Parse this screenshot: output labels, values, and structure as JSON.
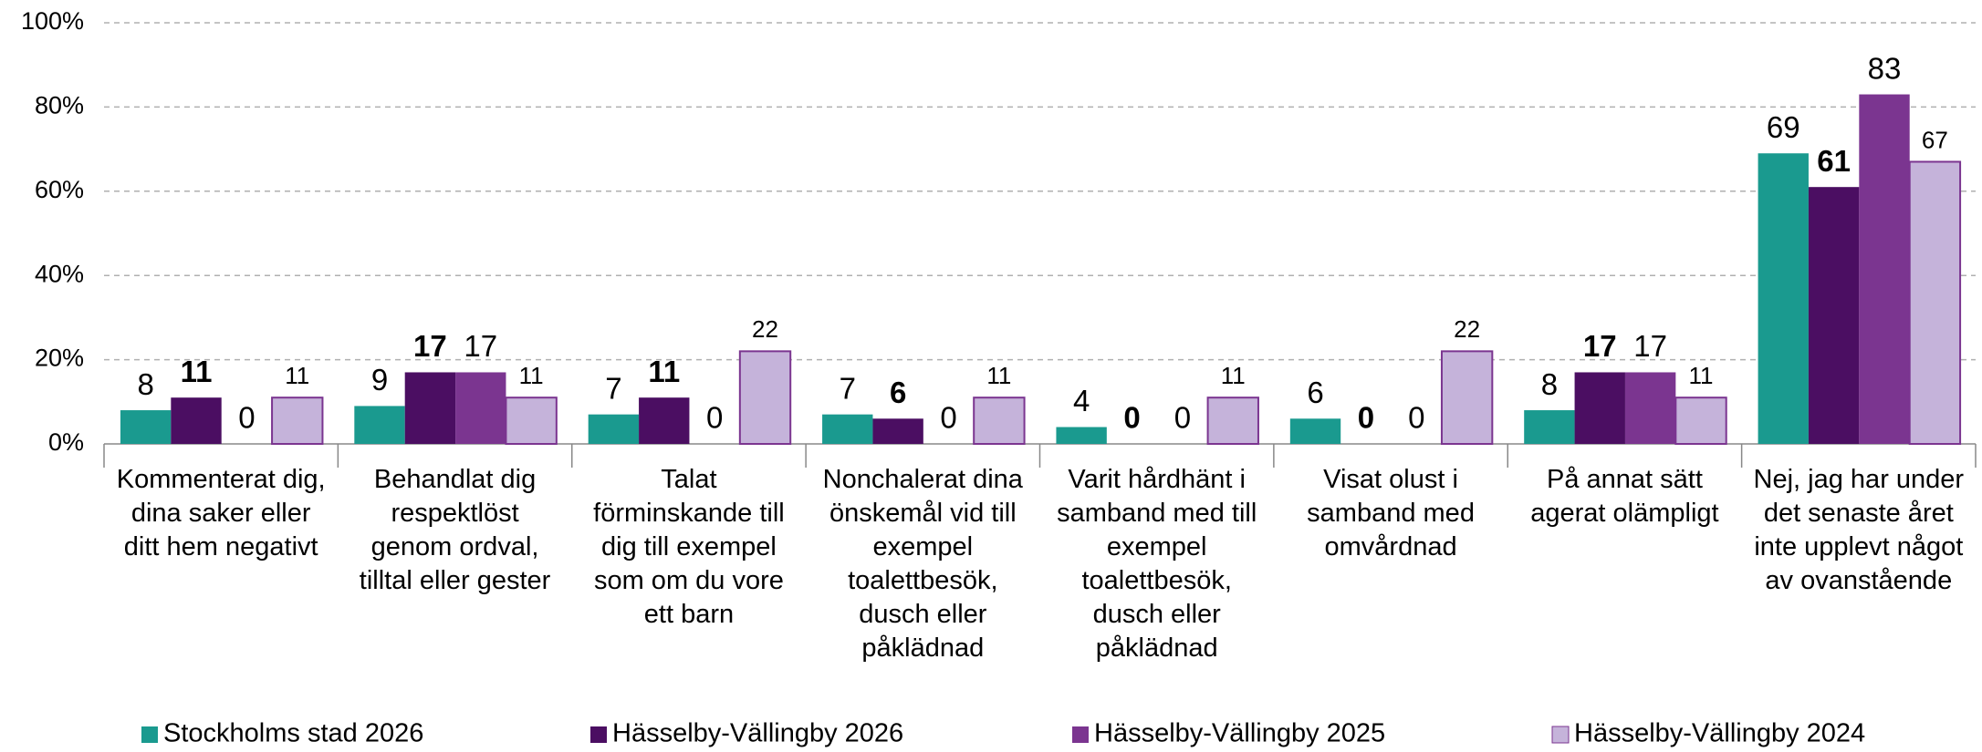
{
  "chart_data": {
    "type": "bar",
    "categories": [
      [
        "Kommenterat dig,",
        "dina saker eller",
        "ditt hem negativt"
      ],
      [
        "Behandlat dig",
        "respektlöst",
        "genom ordval,",
        "tilltal eller gester"
      ],
      [
        "Talat",
        "förminskande till",
        "dig till exempel",
        "som om du vore",
        "ett barn"
      ],
      [
        "Nonchalerat dina",
        "önskemål vid till",
        "exempel",
        "toalettbesök,",
        "dusch eller",
        "påklädnad"
      ],
      [
        "Varit hårdhänt i",
        "samband med till",
        "exempel",
        "toalettbesök,",
        "dusch eller",
        "påklädnad"
      ],
      [
        "Visat olust i",
        "samband med",
        "omvårdnad"
      ],
      [
        "På annat sätt",
        "agerat olämpligt"
      ],
      [
        "Nej, jag har under",
        "det senaste året",
        "inte upplevt något",
        "av ovanstående"
      ]
    ],
    "series": [
      {
        "name": "Stockholms stad 2026",
        "color": "#1a9a8f",
        "values": [
          8,
          9,
          7,
          7,
          4,
          6,
          8,
          69
        ]
      },
      {
        "name": "Hässelby-Vällingby 2026",
        "color": "#4b0e62",
        "values": [
          11,
          17,
          11,
          6,
          0,
          0,
          17,
          61
        ]
      },
      {
        "name": "Hässelby-Vällingby 2025",
        "color": "#7b3590",
        "values": [
          0,
          17,
          0,
          0,
          0,
          0,
          17,
          83
        ]
      },
      {
        "name": "Hässelby-Vällingby 2024",
        "color": "#c5b3da",
        "values": [
          11,
          11,
          22,
          11,
          11,
          22,
          11,
          67
        ]
      }
    ],
    "ylim": [
      0,
      100
    ],
    "yticks": [
      {
        "value": 0,
        "label": "0%"
      },
      {
        "value": 20,
        "label": "20%"
      },
      {
        "value": 40,
        "label": "40%"
      },
      {
        "value": 60,
        "label": "60%"
      },
      {
        "value": 80,
        "label": "80%"
      },
      {
        "value": 100,
        "label": "100%"
      }
    ],
    "grid": true,
    "legend": "bottom"
  }
}
